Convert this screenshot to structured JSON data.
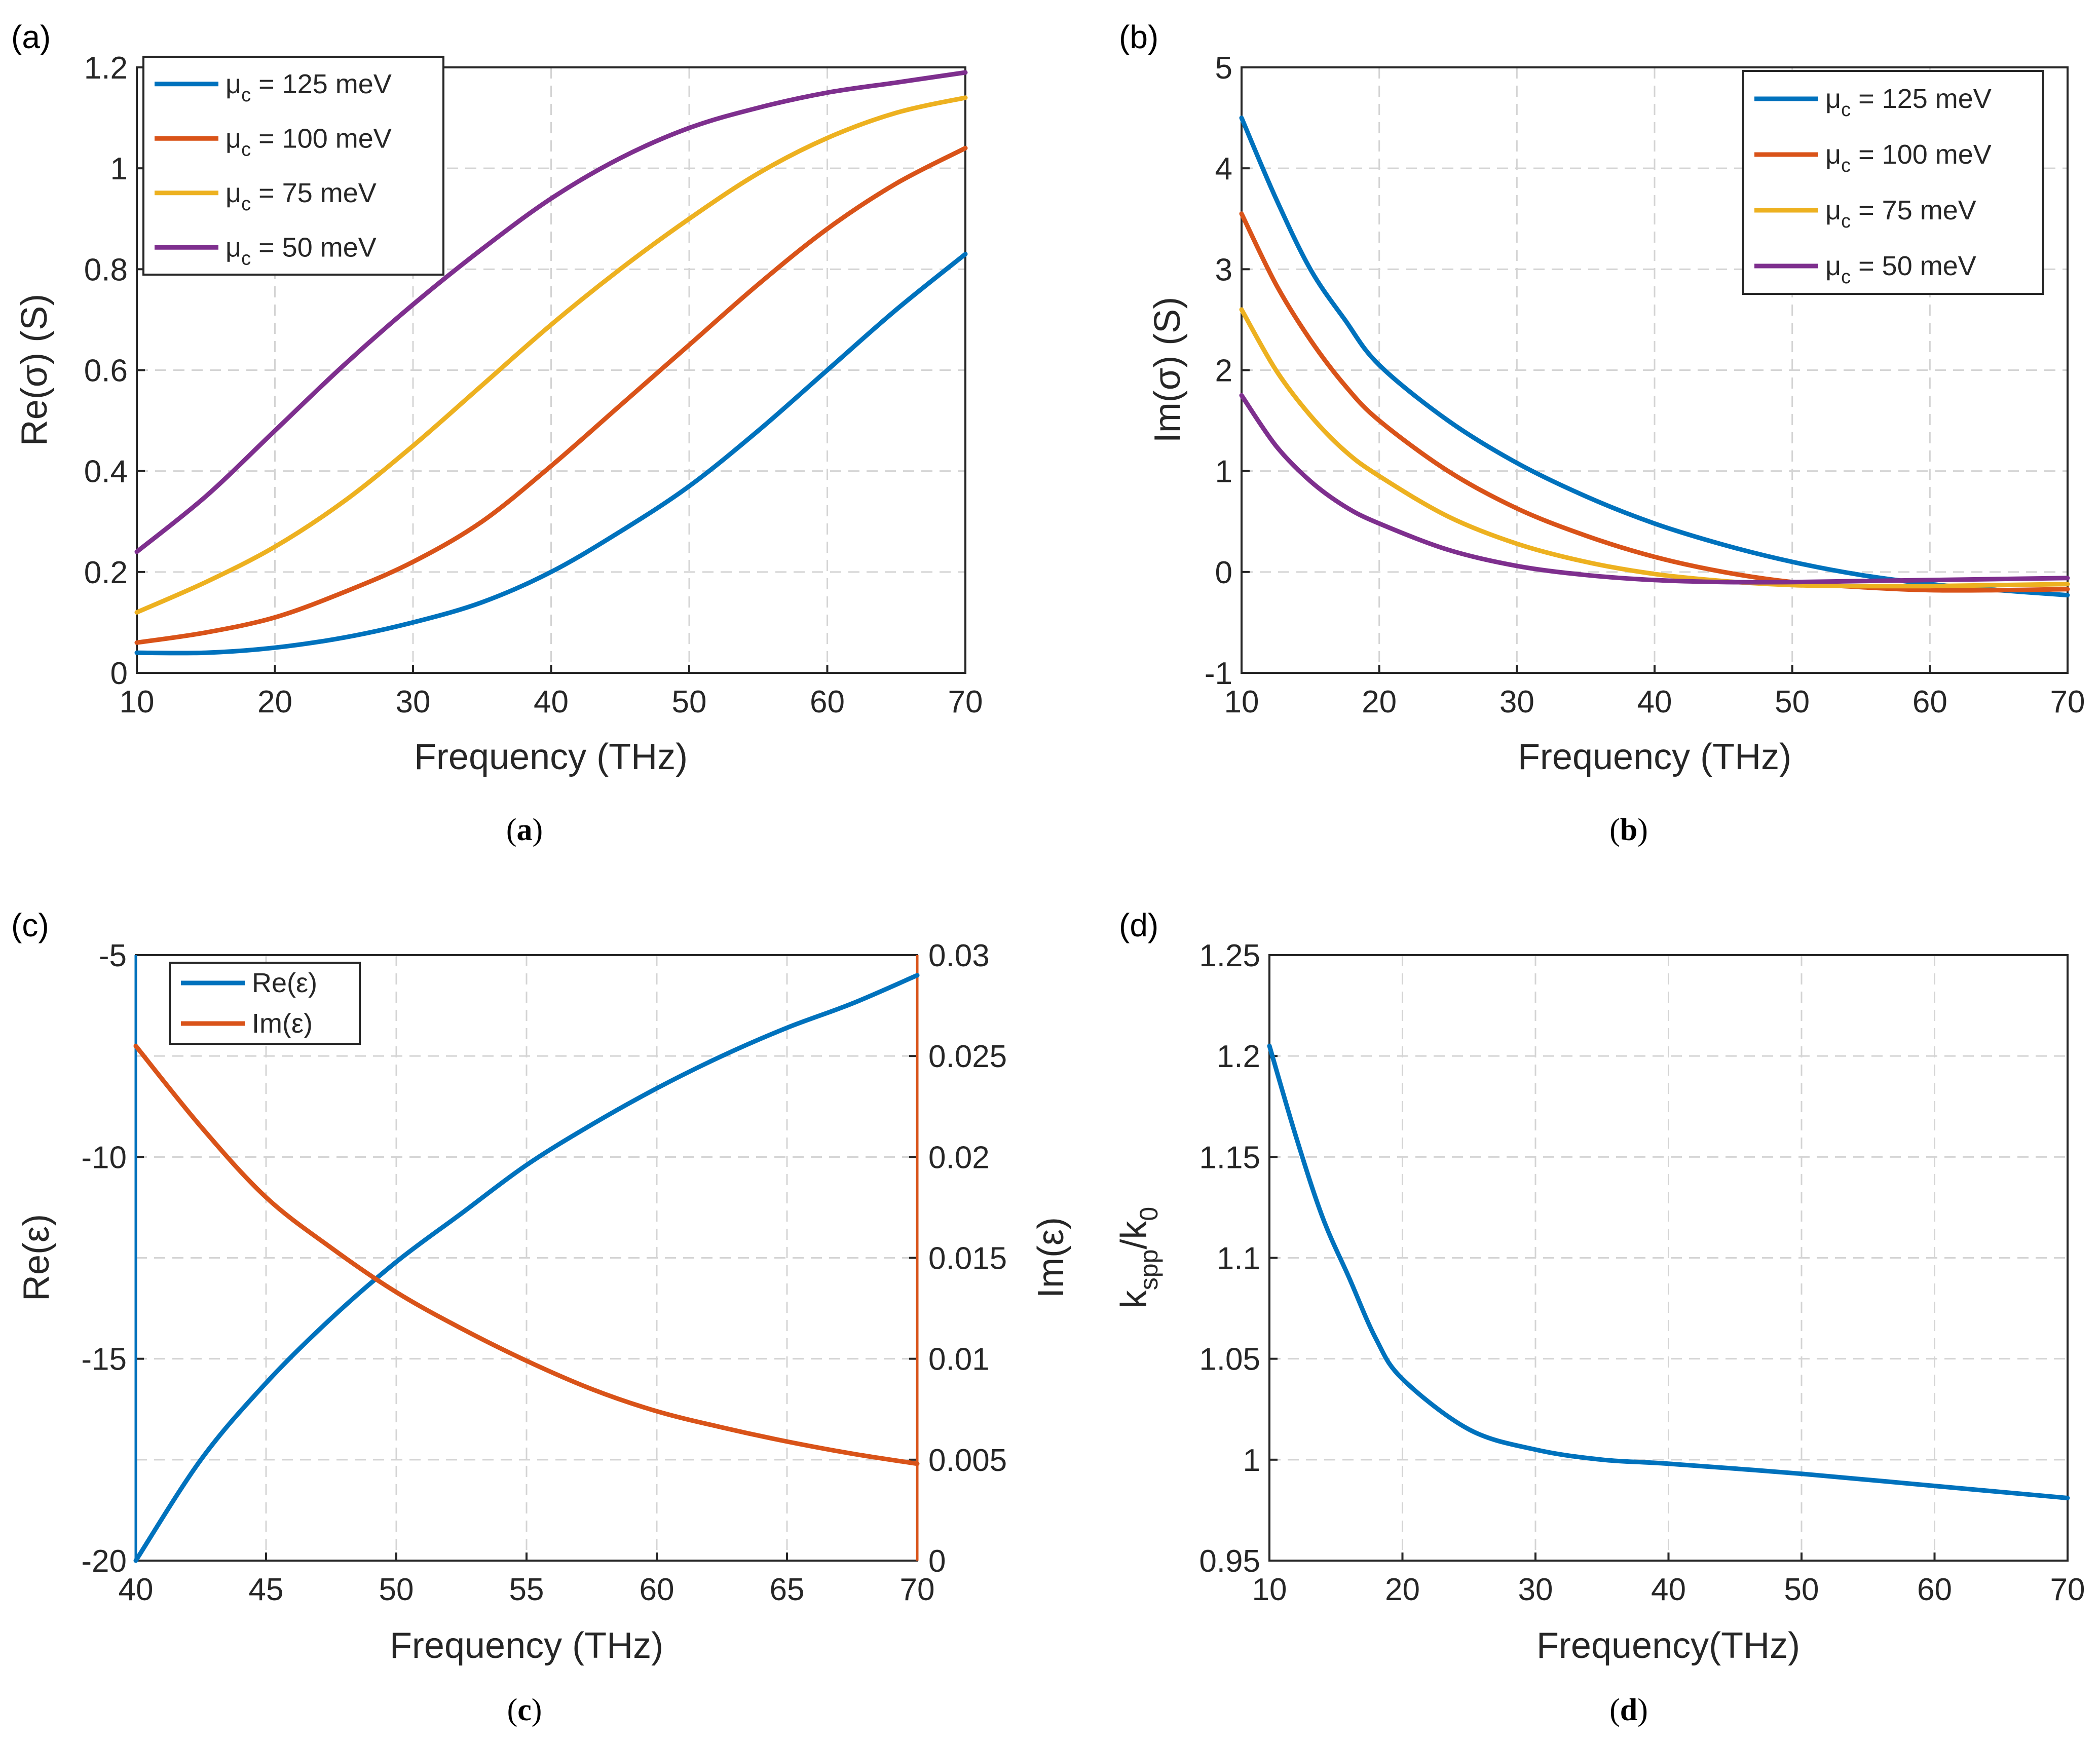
{
  "colors": {
    "blue": "#0072BD",
    "orange": "#D95319",
    "yellow": "#EDB120",
    "purple": "#7E2F8E"
  },
  "chart_data": [
    {
      "id": "a",
      "type": "line",
      "panel_label": "(a)",
      "caption": {
        "open": "(",
        "letter": "a",
        "close": ")"
      },
      "xlabel": "Frequency (THz)",
      "ylabel": "Re(σ) (S)",
      "xlim": [
        10,
        70
      ],
      "ylim": [
        0,
        1.2
      ],
      "xticks": [
        "10",
        "20",
        "30",
        "40",
        "50",
        "60",
        "70"
      ],
      "yticks": [
        "0",
        "0.2",
        "0.4",
        "0.6",
        "0.8",
        "1",
        "1.2"
      ],
      "grid": true,
      "legend_position": "top-left",
      "x": [
        10,
        15,
        20,
        25,
        30,
        35,
        40,
        45,
        50,
        55,
        60,
        65,
        70
      ],
      "series": [
        {
          "name": "μc = 125 meV",
          "legend": {
            "main": "μ",
            "sub": "c",
            "rest": " = 125 meV"
          },
          "color": "blue",
          "values": [
            0.04,
            0.04,
            0.05,
            0.07,
            0.1,
            0.14,
            0.2,
            0.28,
            0.37,
            0.48,
            0.6,
            0.72,
            0.83
          ]
        },
        {
          "name": "μc = 100 meV",
          "legend": {
            "main": "μ",
            "sub": "c",
            "rest": " = 100 meV"
          },
          "color": "orange",
          "values": [
            0.06,
            0.08,
            0.11,
            0.16,
            0.22,
            0.3,
            0.41,
            0.53,
            0.65,
            0.77,
            0.88,
            0.97,
            1.04
          ]
        },
        {
          "name": "μc = 75 meV",
          "legend": {
            "main": "μ",
            "sub": "c",
            "rest": " = 75 meV"
          },
          "color": "yellow",
          "values": [
            0.12,
            0.18,
            0.25,
            0.34,
            0.45,
            0.57,
            0.69,
            0.8,
            0.9,
            0.99,
            1.06,
            1.11,
            1.14
          ]
        },
        {
          "name": "μc = 50 meV",
          "legend": {
            "main": "μ",
            "sub": "c",
            "rest": " = 50 meV"
          },
          "color": "purple",
          "values": [
            0.24,
            0.35,
            0.48,
            0.61,
            0.73,
            0.84,
            0.94,
            1.02,
            1.08,
            1.12,
            1.15,
            1.17,
            1.19
          ]
        }
      ]
    },
    {
      "id": "b",
      "type": "line",
      "panel_label": "(b)",
      "caption": {
        "open": "(",
        "letter": "b",
        "close": ")"
      },
      "xlabel": "Frequency (THz)",
      "ylabel": "Im(σ) (S)",
      "xlim": [
        10,
        70
      ],
      "ylim": [
        -1,
        5
      ],
      "xticks": [
        "10",
        "20",
        "30",
        "40",
        "50",
        "60",
        "70"
      ],
      "yticks": [
        "-1",
        "0",
        "1",
        "2",
        "3",
        "4",
        "5"
      ],
      "grid": true,
      "legend_position": "top-right",
      "x": [
        10,
        12.5,
        15,
        17.5,
        20,
        25,
        30,
        35,
        40,
        45,
        50,
        55,
        60,
        65,
        70
      ],
      "series": [
        {
          "name": "μc = 125 meV",
          "legend": {
            "main": "μ",
            "sub": "c",
            "rest": " = 125 meV"
          },
          "color": "blue",
          "values": [
            4.5,
            3.7,
            3.0,
            2.5,
            2.05,
            1.5,
            1.08,
            0.75,
            0.48,
            0.27,
            0.1,
            -0.03,
            -0.12,
            -0.18,
            -0.23
          ]
        },
        {
          "name": "μc = 100 meV",
          "legend": {
            "main": "μ",
            "sub": "c",
            "rest": " = 100 meV"
          },
          "color": "orange",
          "values": [
            3.55,
            2.85,
            2.3,
            1.85,
            1.5,
            1.0,
            0.63,
            0.36,
            0.15,
            0.0,
            -0.1,
            -0.15,
            -0.18,
            -0.18,
            -0.17
          ]
        },
        {
          "name": "μc = 75 meV",
          "legend": {
            "main": "μ",
            "sub": "c",
            "rest": " = 75 meV"
          },
          "color": "yellow",
          "values": [
            2.6,
            2.0,
            1.55,
            1.2,
            0.95,
            0.55,
            0.28,
            0.1,
            -0.02,
            -0.09,
            -0.13,
            -0.14,
            -0.14,
            -0.13,
            -0.12
          ]
        },
        {
          "name": "μc = 50 meV",
          "legend": {
            "main": "μ",
            "sub": "c",
            "rest": " = 50 meV"
          },
          "color": "purple",
          "values": [
            1.75,
            1.25,
            0.9,
            0.65,
            0.48,
            0.22,
            0.06,
            -0.03,
            -0.08,
            -0.1,
            -0.1,
            -0.09,
            -0.08,
            -0.07,
            -0.06
          ]
        }
      ]
    },
    {
      "id": "c",
      "type": "line",
      "panel_label": "(c)",
      "caption": {
        "open": "(",
        "letter": "c",
        "close": ")"
      },
      "xlabel": "Frequency (THz)",
      "ylabel": "Re(ε)",
      "ylabel_right": "Im(ε)",
      "xlim": [
        40,
        70
      ],
      "ylim": [
        -20,
        -5
      ],
      "ylim_right": [
        0,
        0.03
      ],
      "xticks": [
        "40",
        "45",
        "50",
        "55",
        "60",
        "65",
        "70"
      ],
      "yticks": [
        "-20",
        "-15",
        "-10",
        "-5"
      ],
      "yticks_right": [
        "0",
        "0.005",
        "0.01",
        "0.015",
        "0.02",
        "0.025",
        "0.03"
      ],
      "grid": true,
      "legend_position": "top-left",
      "x": [
        40,
        42.5,
        45,
        47.5,
        50,
        52.5,
        55,
        57.5,
        60,
        62.5,
        65,
        67.5,
        70
      ],
      "series": [
        {
          "name": "Re(ε)",
          "axis": "left",
          "color": "blue",
          "values": [
            -20,
            -17.5,
            -15.6,
            -14.0,
            -12.6,
            -11.4,
            -10.2,
            -9.2,
            -8.3,
            -7.5,
            -6.8,
            -6.2,
            -5.5
          ]
        },
        {
          "name": "Im(ε)",
          "axis": "right",
          "color": "orange",
          "values": [
            0.0255,
            0.0215,
            0.018,
            0.0155,
            0.0133,
            0.0115,
            0.0099,
            0.0085,
            0.0074,
            0.0066,
            0.0059,
            0.0053,
            0.0048
          ]
        }
      ]
    },
    {
      "id": "d",
      "type": "line",
      "panel_label": "(d)",
      "caption": {
        "open": "(",
        "letter": "d",
        "close": ")"
      },
      "xlabel": "Frequency(THz)",
      "ylabel": {
        "k": "k",
        "spp": "spp",
        "slash": "/k",
        "zero": "0"
      },
      "xlim": [
        10,
        70
      ],
      "ylim": [
        0.95,
        1.25
      ],
      "xticks": [
        "10",
        "20",
        "30",
        "40",
        "50",
        "60",
        "70"
      ],
      "yticks": [
        "0.95",
        "1",
        "1.05",
        "1.1",
        "1.15",
        "1.2",
        "1.25"
      ],
      "grid": true,
      "x": [
        10,
        12,
        14,
        16,
        18,
        20,
        25,
        30,
        35,
        40,
        50,
        60,
        70
      ],
      "series": [
        {
          "name": "kspp/k0",
          "color": "blue",
          "values": [
            1.205,
            1.16,
            1.12,
            1.09,
            1.06,
            1.04,
            1.015,
            1.005,
            1.0,
            0.998,
            0.993,
            0.987,
            0.981
          ]
        }
      ]
    }
  ]
}
